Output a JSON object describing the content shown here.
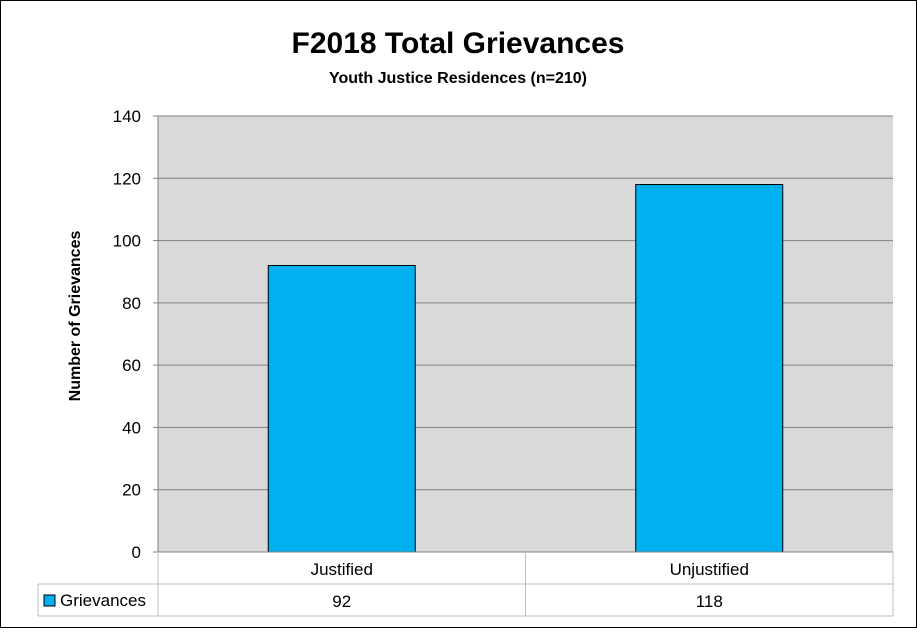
{
  "chart_data": {
    "type": "bar",
    "title": "F2018 Total Grievances",
    "subtitle": "Youth Justice Residences (n=210)",
    "ylabel": "Number of Grievances",
    "xlabel": "",
    "ylim": [
      0,
      140
    ],
    "yticks": [
      0,
      20,
      40,
      60,
      80,
      100,
      120,
      140
    ],
    "categories": [
      "Justified",
      "Unjustified"
    ],
    "series": [
      {
        "name": "Grievances",
        "values": [
          92,
          118
        ],
        "color": "#00b0f0"
      }
    ],
    "grid": true,
    "plot_background": "#d9d9d9",
    "legend": "data-table"
  }
}
